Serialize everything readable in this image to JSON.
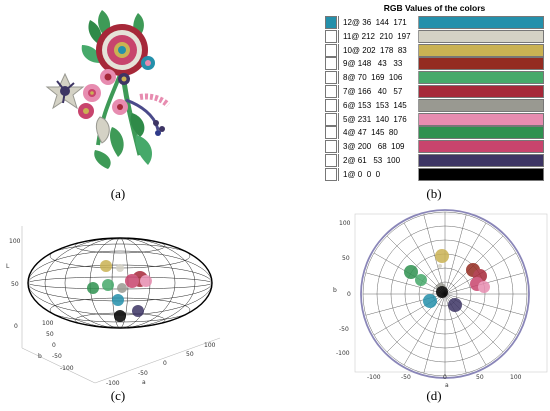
{
  "captions": {
    "a": "(a)",
    "b": "(b)",
    "c": "(c)",
    "d": "(d)"
  },
  "palette": {
    "title": "RGB Values of the colors",
    "rows": [
      {
        "label": "12@ 36  144  171",
        "color": "#2490ab"
      },
      {
        "label": "11@ 212  210  197",
        "color": "#d4d2c5"
      },
      {
        "label": "10@ 202  178  83",
        "color": "#cab253"
      },
      {
        "label": "9@ 148   43   33",
        "color": "#942b21"
      },
      {
        "label": "8@ 70  169  106",
        "color": "#46a96a"
      },
      {
        "label": "7@ 166   40   57",
        "color": "#a62839"
      },
      {
        "label": "6@ 153  153  145",
        "color": "#999991"
      },
      {
        "label": "5@ 231  140  176",
        "color": "#e78cb0"
      },
      {
        "label": "4@ 47  145  80",
        "color": "#2f9150"
      },
      {
        "label": "3@ 200   68  109",
        "color": "#c8446d"
      },
      {
        "label": "2@ 61   53  100",
        "color": "#3d3564"
      },
      {
        "label": "1@ 0  0  0",
        "color": "#000000"
      }
    ]
  },
  "plot_c": {
    "zlabel": "L",
    "xlabel": "a",
    "ylabel": "b",
    "z_ticks": [
      "100",
      "50",
      "0"
    ],
    "b_ticks": [
      "100",
      "50",
      "0",
      "-50",
      "-100"
    ],
    "a_ticks": [
      "-100",
      "-50",
      "0",
      "50",
      "100"
    ]
  },
  "plot_d": {
    "xlabel": "a",
    "ylabel": "b",
    "y_ticks": [
      "100",
      "50",
      "0",
      "-50",
      "-100"
    ],
    "x_ticks": [
      "-100",
      "-50",
      "0",
      "50",
      "100"
    ]
  }
}
